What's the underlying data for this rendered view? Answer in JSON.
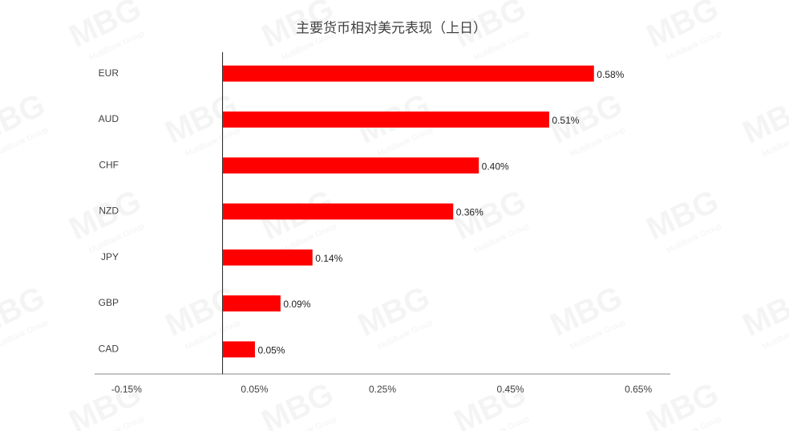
{
  "chart_data": {
    "type": "bar",
    "orientation": "horizontal",
    "title": "主要货币相对美元表现（上日）",
    "watermark": "MBG",
    "watermark_subtitle": "MultiBank Group",
    "categories": [
      "EUR",
      "AUD",
      "CHF",
      "NZD",
      "JPY",
      "GBP",
      "CAD"
    ],
    "values": [
      0.58,
      0.51,
      0.4,
      0.36,
      0.14,
      0.09,
      0.05
    ],
    "value_labels": [
      "0.58%",
      "0.51%",
      "0.40%",
      "0.36%",
      "0.14%",
      "0.09%",
      "0.05%"
    ],
    "color": "#ff0000",
    "xlim": [
      -0.2,
      0.7
    ],
    "xticks": [
      {
        "value": -0.15,
        "label": "-0.15%"
      },
      {
        "value": 0.05,
        "label": "0.05%"
      },
      {
        "value": 0.25,
        "label": "0.25%"
      },
      {
        "value": 0.45,
        "label": "0.45%"
      },
      {
        "value": 0.65,
        "label": "0.65%"
      }
    ],
    "grid": false
  }
}
